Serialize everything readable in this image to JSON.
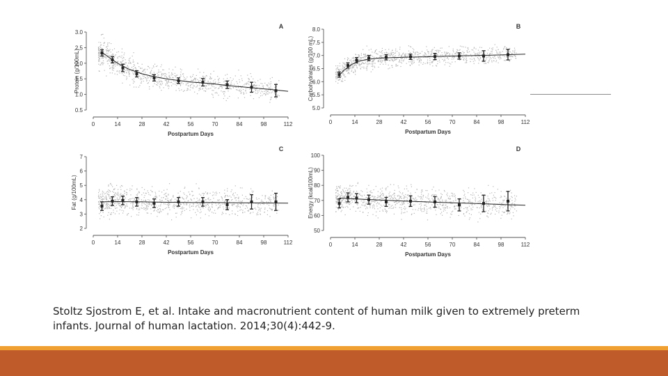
{
  "chart_data": [
    {
      "type": "scatter",
      "panel_letter": "A",
      "xlabel": "Postpartum Days",
      "ylabel": "Protein (g/100mL)",
      "xlim": [
        0,
        112
      ],
      "ylim": [
        0.5,
        3.0
      ],
      "x_ticks": [
        "0",
        "14",
        "28",
        "42",
        "56",
        "70",
        "84",
        "98",
        "112"
      ],
      "y_ticks": [
        "0.5",
        "1.0",
        "1.5",
        "2.0",
        "2.5",
        "3.0"
      ],
      "trend": {
        "x": [
          5,
          10,
          14,
          20,
          28,
          35,
          42,
          50,
          56,
          65,
          70,
          80,
          90,
          100,
          112
        ],
        "y": [
          2.35,
          2.15,
          2.0,
          1.82,
          1.66,
          1.57,
          1.5,
          1.44,
          1.4,
          1.36,
          1.33,
          1.27,
          1.22,
          1.17,
          1.1
        ]
      },
      "means": [
        {
          "x": 5,
          "y": 2.33,
          "lo": 2.23,
          "hi": 2.43
        },
        {
          "x": 11,
          "y": 2.11,
          "lo": 2.01,
          "hi": 2.21
        },
        {
          "x": 17,
          "y": 1.85,
          "lo": 1.73,
          "hi": 1.97
        },
        {
          "x": 25,
          "y": 1.66,
          "lo": 1.56,
          "hi": 1.76
        },
        {
          "x": 35,
          "y": 1.53,
          "lo": 1.43,
          "hi": 1.63
        },
        {
          "x": 49,
          "y": 1.44,
          "lo": 1.35,
          "hi": 1.53
        },
        {
          "x": 63,
          "y": 1.39,
          "lo": 1.27,
          "hi": 1.51
        },
        {
          "x": 77,
          "y": 1.31,
          "lo": 1.19,
          "hi": 1.43
        },
        {
          "x": 91,
          "y": 1.23,
          "lo": 1.07,
          "hi": 1.39
        },
        {
          "x": 105,
          "y": 1.12,
          "lo": 0.92,
          "hi": 1.32
        }
      ],
      "scatter": {
        "sd": 0.32,
        "spread_decay": 0.6
      },
      "grid": false,
      "colors": {
        "points": "#b4b4b4",
        "line": "#222222",
        "axis": "#555555"
      }
    },
    {
      "type": "scatter",
      "panel_letter": "B",
      "xlabel": "Postpartum Days",
      "ylabel": "Carbohydrates (g/100 mL)",
      "xlim": [
        0,
        112
      ],
      "ylim": [
        5.0,
        8.0
      ],
      "x_ticks": [
        "0",
        "14",
        "28",
        "42",
        "56",
        "70",
        "84",
        "98",
        "112"
      ],
      "y_ticks": [
        "5.0",
        "5.5",
        "6.0",
        "6.5",
        "7.0",
        "7.5",
        "8.0"
      ],
      "trend": {
        "x": [
          5,
          8,
          12,
          16,
          22,
          28,
          35,
          42,
          56,
          70,
          84,
          98,
          112
        ],
        "y": [
          6.25,
          6.45,
          6.65,
          6.78,
          6.86,
          6.9,
          6.92,
          6.93,
          6.95,
          6.98,
          7.0,
          7.02,
          7.05
        ]
      },
      "means": [
        {
          "x": 5,
          "y": 6.27,
          "lo": 6.17,
          "hi": 6.37
        },
        {
          "x": 10,
          "y": 6.62,
          "lo": 6.52,
          "hi": 6.72
        },
        {
          "x": 15,
          "y": 6.82,
          "lo": 6.72,
          "hi": 6.92
        },
        {
          "x": 22,
          "y": 6.9,
          "lo": 6.8,
          "hi": 7.0
        },
        {
          "x": 32,
          "y": 6.93,
          "lo": 6.83,
          "hi": 7.03
        },
        {
          "x": 46,
          "y": 6.95,
          "lo": 6.85,
          "hi": 7.05
        },
        {
          "x": 60,
          "y": 6.96,
          "lo": 6.84,
          "hi": 7.08
        },
        {
          "x": 74,
          "y": 6.98,
          "lo": 6.86,
          "hi": 7.1
        },
        {
          "x": 88,
          "y": 6.98,
          "lo": 6.78,
          "hi": 7.18
        },
        {
          "x": 102,
          "y": 7.03,
          "lo": 6.83,
          "hi": 7.23
        }
      ],
      "scatter": {
        "sd": 0.3,
        "spread_decay": 0.2
      },
      "grid": false,
      "colors": {
        "points": "#b4b4b4",
        "line": "#222222",
        "axis": "#555555"
      }
    },
    {
      "type": "scatter",
      "panel_letter": "C",
      "xlabel": "Postpartum Days",
      "ylabel": "Fat (g/100mL)",
      "xlim": [
        0,
        112
      ],
      "ylim": [
        2,
        7
      ],
      "x_ticks": [
        "0",
        "14",
        "28",
        "42",
        "56",
        "70",
        "84",
        "98",
        "112"
      ],
      "y_ticks": [
        "2",
        "3",
        "4",
        "5",
        "6",
        "7"
      ],
      "trend": {
        "x": [
          5,
          14,
          28,
          42,
          56,
          70,
          84,
          98,
          112
        ],
        "y": [
          3.85,
          3.87,
          3.85,
          3.82,
          3.8,
          3.8,
          3.78,
          3.77,
          3.76
        ]
      },
      "means": [
        {
          "x": 5,
          "y": 3.55,
          "lo": 3.25,
          "hi": 3.85
        },
        {
          "x": 11,
          "y": 3.9,
          "lo": 3.6,
          "hi": 4.2
        },
        {
          "x": 17,
          "y": 3.95,
          "lo": 3.65,
          "hi": 4.25
        },
        {
          "x": 25,
          "y": 3.85,
          "lo": 3.55,
          "hi": 4.15
        },
        {
          "x": 35,
          "y": 3.75,
          "lo": 3.45,
          "hi": 4.05
        },
        {
          "x": 49,
          "y": 3.85,
          "lo": 3.55,
          "hi": 4.15
        },
        {
          "x": 63,
          "y": 3.85,
          "lo": 3.55,
          "hi": 4.15
        },
        {
          "x": 77,
          "y": 3.65,
          "lo": 3.3,
          "hi": 4.0
        },
        {
          "x": 91,
          "y": 3.85,
          "lo": 3.35,
          "hi": 4.35
        },
        {
          "x": 105,
          "y": 3.85,
          "lo": 3.25,
          "hi": 4.45
        }
      ],
      "scatter": {
        "sd": 0.85,
        "spread_decay": 0.0
      },
      "grid": false,
      "colors": {
        "points": "#b4b4b4",
        "line": "#222222",
        "axis": "#555555"
      }
    },
    {
      "type": "scatter",
      "panel_letter": "D",
      "xlabel": "Postpartum Days",
      "ylabel": "Energy (kcal/100mL)",
      "xlim": [
        0,
        112
      ],
      "ylim": [
        50,
        100
      ],
      "x_ticks": [
        "0",
        "14",
        "28",
        "42",
        "56",
        "70",
        "84",
        "98",
        "112"
      ],
      "y_ticks": [
        "50",
        "60",
        "70",
        "80",
        "90",
        "100"
      ],
      "trend": {
        "x": [
          5,
          14,
          28,
          42,
          56,
          70,
          84,
          98,
          112
        ],
        "y": [
          71.5,
          71.0,
          70.3,
          69.6,
          69.0,
          68.4,
          67.9,
          67.3,
          66.8
        ]
      },
      "means": [
        {
          "x": 5,
          "y": 68.0,
          "lo": 65.0,
          "hi": 71.0
        },
        {
          "x": 10,
          "y": 72.0,
          "lo": 69.0,
          "hi": 75.0
        },
        {
          "x": 15,
          "y": 71.5,
          "lo": 68.5,
          "hi": 74.5
        },
        {
          "x": 22,
          "y": 70.5,
          "lo": 67.5,
          "hi": 73.5
        },
        {
          "x": 32,
          "y": 69.0,
          "lo": 66.0,
          "hi": 72.0
        },
        {
          "x": 46,
          "y": 69.5,
          "lo": 66.0,
          "hi": 73.0
        },
        {
          "x": 60,
          "y": 69.0,
          "lo": 65.5,
          "hi": 72.5
        },
        {
          "x": 74,
          "y": 67.0,
          "lo": 63.0,
          "hi": 71.0
        },
        {
          "x": 88,
          "y": 68.0,
          "lo": 62.5,
          "hi": 73.5
        },
        {
          "x": 102,
          "y": 69.5,
          "lo": 63.0,
          "hi": 76.0
        }
      ],
      "scatter": {
        "sd": 8.0,
        "spread_decay": 0.0
      },
      "grid": false,
      "colors": {
        "points": "#b4b4b4",
        "line": "#222222",
        "axis": "#555555"
      }
    }
  ],
  "caption": {
    "line1": "Stoltz Sjostrom E, et al. Intake and macronutrient content of human milk given to extremely preterm",
    "line2": "infants. Journal of human lactation. 2014;30(4):442-9."
  },
  "colors": {
    "footer_bar": "#bf5a2a",
    "footer_stripe": "#f0a030"
  }
}
